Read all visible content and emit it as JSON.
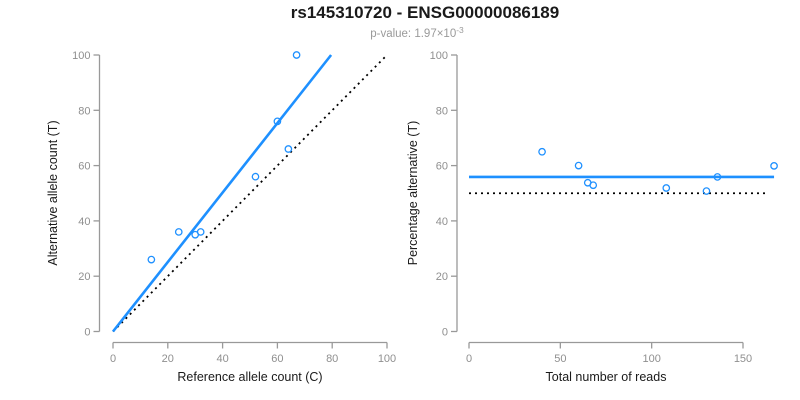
{
  "header": {
    "title": "rs145310720 - ENSG00000086189",
    "pvalue_prefix": "p-value: 1.97×10",
    "pvalue_exponent": "-3"
  },
  "colors": {
    "accent": "#1e90ff",
    "identity": "#000000",
    "axis": "#999999",
    "tick_label": "#8f8f8f",
    "text": "#1a1a1a",
    "subtitle": "#9a9a9a",
    "background": "#ffffff"
  },
  "chart_data": [
    {
      "type": "scatter",
      "panel": "allele-counts",
      "xlabel": "Reference allele count (C)",
      "ylabel": "Alternative allele count (T)",
      "xlim": [
        0,
        100
      ],
      "ylim": [
        0,
        100
      ],
      "xticks": [
        0,
        20,
        40,
        60,
        80,
        100
      ],
      "yticks": [
        0,
        20,
        40,
        60,
        80,
        100
      ],
      "grid": false,
      "legend": false,
      "points": [
        [
          14,
          26
        ],
        [
          24,
          36
        ],
        [
          30,
          35
        ],
        [
          32,
          36
        ],
        [
          52,
          56
        ],
        [
          60,
          76
        ],
        [
          64,
          66
        ],
        [
          67,
          100
        ]
      ],
      "lines": [
        {
          "name": "identity-line",
          "x1": 0,
          "y1": 0,
          "x2": 100,
          "y2": 100,
          "style": "dotted",
          "color": "#000000"
        },
        {
          "name": "fit-line",
          "x1": 0,
          "y1": 0,
          "x2": 79.6,
          "y2": 100,
          "style": "solid",
          "color": "#1e90ff",
          "slope": 1.257
        }
      ]
    },
    {
      "type": "scatter",
      "panel": "percentage-vs-reads",
      "xlabel": "Total number of reads",
      "ylabel": "Percentage alternative (T)",
      "xlim": [
        0,
        170
      ],
      "ylim": [
        0,
        100
      ],
      "xticks": [
        0,
        50,
        100,
        150
      ],
      "yticks": [
        0,
        20,
        40,
        60,
        80,
        100
      ],
      "grid": false,
      "legend": false,
      "points": [
        [
          40,
          65
        ],
        [
          60,
          60
        ],
        [
          65,
          53.8
        ],
        [
          68,
          52.9
        ],
        [
          108,
          51.9
        ],
        [
          130,
          50.8
        ],
        [
          136,
          55.9
        ],
        [
          167,
          59.9
        ]
      ],
      "lines": [
        {
          "name": "null-line",
          "x1": 0,
          "y1": 50,
          "x2": 164,
          "y2": 50,
          "style": "dotted",
          "color": "#000000"
        },
        {
          "name": "mean-line",
          "x1": 0,
          "y1": 55.9,
          "x2": 167,
          "y2": 55.9,
          "style": "solid",
          "color": "#1e90ff"
        }
      ]
    }
  ]
}
